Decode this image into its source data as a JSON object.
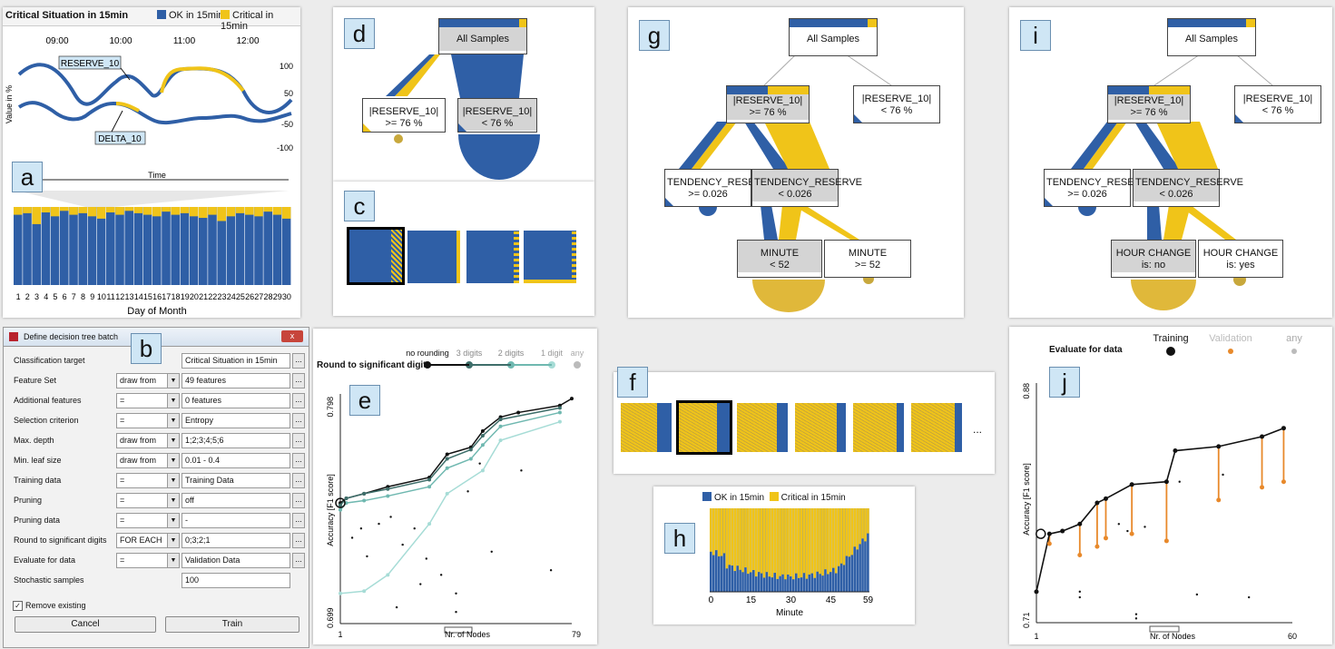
{
  "colors": {
    "ok": "#2f5fa6",
    "critical": "#f0c419",
    "training": "#111111",
    "validation": "#e8892b",
    "any": "#b0b0b0",
    "accent_label_bg": "#cfe6f5"
  },
  "panel_labels": {
    "a": "a",
    "b": "b",
    "c": "c",
    "d": "d",
    "e": "e",
    "f": "f",
    "g": "g",
    "h": "h",
    "i": "i",
    "j": "j"
  },
  "timeseries": {
    "title": "Critical Situation in 15min",
    "legend_ok": "OK in 15min",
    "legend_critical": "Critical in 15min",
    "times": [
      "09:00",
      "10:00",
      "11:00",
      "12:00"
    ],
    "ylabel": "Value in %",
    "xlabel": "Time",
    "yticks": [
      "100",
      "50",
      "-50",
      "-100"
    ],
    "series_labels": {
      "reserve": "RESERVE_10",
      "delta": "DELTA_10"
    }
  },
  "day_chart": {
    "xlabel": "Day of Month",
    "days": [
      "1",
      "2",
      "3",
      "4",
      "5",
      "6",
      "7",
      "8",
      "9",
      "10",
      "11",
      "12",
      "13",
      "14",
      "15",
      "16",
      "17",
      "18",
      "19",
      "20",
      "21",
      "22",
      "23",
      "24",
      "25",
      "26",
      "27",
      "28",
      "29",
      "30"
    ],
    "critical_fraction": [
      0.1,
      0.08,
      0.22,
      0.07,
      0.12,
      0.05,
      0.1,
      0.08,
      0.12,
      0.15,
      0.07,
      0.1,
      0.05,
      0.08,
      0.1,
      0.12,
      0.06,
      0.1,
      0.08,
      0.12,
      0.14,
      0.1,
      0.18,
      0.12,
      0.08,
      0.1,
      0.12,
      0.06,
      0.1,
      0.15
    ]
  },
  "dialog": {
    "title": "Define decision tree batch",
    "rows": [
      {
        "label": "Classification target",
        "mode": "",
        "value": "Critical Situation in 15min"
      },
      {
        "label": "Feature Set",
        "mode": "draw from",
        "value": "49 features"
      },
      {
        "label": "Additional features",
        "mode": "=",
        "value": "0 features"
      },
      {
        "label": "Selection criterion",
        "mode": "=",
        "value": "Entropy"
      },
      {
        "label": "Max. depth",
        "mode": "draw from",
        "value": "1;2;3;4;5;6"
      },
      {
        "label": "Min. leaf size",
        "mode": "draw from",
        "value": "0.01 - 0.4"
      },
      {
        "label": "Training data",
        "mode": "=",
        "value": "Training Data"
      },
      {
        "label": "Pruning",
        "mode": "=",
        "value": "off"
      },
      {
        "label": "Pruning data",
        "mode": "=",
        "value": "-"
      },
      {
        "label": "Round to significant digits",
        "mode": "FOR EACH",
        "value": "0;3;2;1"
      },
      {
        "label": "Evaluate for data",
        "mode": "=",
        "value": "Validation Data"
      },
      {
        "label": "Stochastic samples",
        "mode": "",
        "value": "100"
      }
    ],
    "checkbox_label": "Remove existing",
    "cancel": "Cancel",
    "train": "Train",
    "close": "x",
    "dots": "..."
  },
  "tree_d": {
    "root": "All Samples",
    "left_line1": "|RESERVE_10|",
    "left_line2": ">= 76 %",
    "right_line1": "|RESERVE_10|",
    "right_line2": "< 76 %"
  },
  "tree_g": {
    "root": "All Samples",
    "n1a": "|RESERVE_10|",
    "n1b": ">= 76 %",
    "n2a": "|RESERVE_10|",
    "n2b": "< 76 %",
    "n3a": "TENDENCY_RESERVE",
    "n3b": ">= 0.026",
    "n4a": "TENDENCY_RESERVE",
    "n4b": "< 0.026",
    "n5a": "MINUTE",
    "n5b": "< 52",
    "n6a": "MINUTE",
    "n6b": ">= 52"
  },
  "tree_i": {
    "root": "All Samples",
    "n1a": "|RESERVE_10|",
    "n1b": ">= 76 %",
    "n2a": "|RESERVE_10|",
    "n2b": "< 76 %",
    "n3a": "TENDENCY_RESERVE",
    "n3b": ">= 0.026",
    "n4a": "TENDENCY_RESERVE",
    "n4b": "< 0.026",
    "n5a": "HOUR CHANGE",
    "n5b": "is: no",
    "n6a": "HOUR CHANGE",
    "n6b": "is: yes"
  },
  "round_control": {
    "title": "Round to significant digits",
    "options": [
      "no rounding",
      "3 digits",
      "2 digits",
      "1 digit",
      "any"
    ]
  },
  "plot_e": {
    "ylabel": "Accuracy [F1 score]",
    "xlabel": "Nr. of Nodes",
    "ymax": "0.798",
    "ymin": "0.699",
    "xmin": "1",
    "xmax": "79"
  },
  "plot_h": {
    "legend_ok": "OK in 15min",
    "legend_critical": "Critical in 15min",
    "xlabel": "Minute",
    "xticks": [
      "0",
      "15",
      "30",
      "45",
      "59"
    ]
  },
  "eval_control": {
    "title": "Evaluate for data",
    "options": [
      "Training",
      "Validation",
      "any"
    ]
  },
  "plot_j": {
    "ylabel": "Accuracy [F1 score]",
    "xlabel": "Nr. of Nodes",
    "ymax": "0.88",
    "ymin": "0.71",
    "xmin": "1",
    "xmax": "60"
  },
  "misc": {
    "ellipsis": "..."
  },
  "chart_data": [
    {
      "type": "line",
      "title": "Critical Situation in 15min",
      "ylabel": "Value in %",
      "xlabel": "Time",
      "x": [
        "09:00",
        "10:00",
        "11:00",
        "12:00"
      ],
      "series": [
        {
          "name": "RESERVE_10",
          "values": [
            75,
            15,
            95,
            95
          ]
        },
        {
          "name": "DELTA_10",
          "values": [
            5,
            -45,
            -25,
            -20
          ]
        }
      ],
      "ylim": [
        -100,
        100
      ]
    },
    {
      "type": "bar",
      "xlabel": "Day of Month",
      "categories": [
        "1",
        "2",
        "3",
        "4",
        "5",
        "6",
        "7",
        "8",
        "9",
        "10",
        "11",
        "12",
        "13",
        "14",
        "15",
        "16",
        "17",
        "18",
        "19",
        "20",
        "21",
        "22",
        "23",
        "24",
        "25",
        "26",
        "27",
        "28",
        "29",
        "30"
      ],
      "series": [
        {
          "name": "Critical in 15min",
          "values": [
            0.1,
            0.08,
            0.22,
            0.07,
            0.12,
            0.05,
            0.1,
            0.08,
            0.12,
            0.15,
            0.07,
            0.1,
            0.05,
            0.08,
            0.1,
            0.12,
            0.06,
            0.1,
            0.08,
            0.12,
            0.14,
            0.1,
            0.18,
            0.12,
            0.08,
            0.1,
            0.12,
            0.06,
            0.1,
            0.15
          ]
        }
      ]
    },
    {
      "type": "line",
      "xlabel": "Nr. of Nodes",
      "ylabel": "Accuracy [F1 score]",
      "xlim": [
        1,
        79
      ],
      "ylim": [
        0.699,
        0.798
      ],
      "series": [
        {
          "name": "no rounding",
          "x": [
            1,
            3,
            9,
            17,
            31,
            37,
            45,
            49,
            55,
            61,
            75,
            79
          ],
          "y": [
            0.751,
            0.753,
            0.755,
            0.758,
            0.762,
            0.772,
            0.775,
            0.782,
            0.788,
            0.79,
            0.793,
            0.796
          ]
        },
        {
          "name": "3 digits",
          "x": [
            1,
            3,
            9,
            17,
            31,
            37,
            45,
            49,
            55,
            75
          ],
          "y": [
            0.75,
            0.753,
            0.755,
            0.757,
            0.761,
            0.77,
            0.774,
            0.78,
            0.787,
            0.792
          ]
        },
        {
          "name": "2 digits",
          "x": [
            1,
            3,
            9,
            17,
            31,
            37,
            45,
            49,
            55,
            75
          ],
          "y": [
            0.748,
            0.751,
            0.752,
            0.754,
            0.758,
            0.766,
            0.77,
            0.776,
            0.784,
            0.79
          ]
        },
        {
          "name": "1 digit",
          "x": [
            1,
            9,
            17,
            31,
            37,
            49,
            55,
            75
          ],
          "y": [
            0.712,
            0.713,
            0.72,
            0.742,
            0.755,
            0.765,
            0.778,
            0.786
          ]
        }
      ]
    },
    {
      "type": "line",
      "xlabel": "Nr. of Nodes",
      "ylabel": "Accuracy [F1 score]",
      "xlim": [
        1,
        60
      ],
      "ylim": [
        0.71,
        0.88
      ],
      "series": [
        {
          "name": "Training",
          "x": [
            1,
            4,
            7,
            11,
            15,
            17,
            23,
            31,
            33,
            43,
            53,
            58
          ],
          "y": [
            0.732,
            0.773,
            0.775,
            0.78,
            0.795,
            0.798,
            0.808,
            0.81,
            0.832,
            0.835,
            0.842,
            0.848
          ]
        },
        {
          "name": "Validation",
          "x": [
            4,
            11,
            15,
            17,
            23,
            31,
            43,
            53,
            58
          ],
          "y": [
            0.766,
            0.758,
            0.764,
            0.77,
            0.773,
            0.768,
            0.797,
            0.806,
            0.81
          ]
        }
      ]
    },
    {
      "type": "bar",
      "xlabel": "Minute",
      "categories": [
        "0",
        "15",
        "30",
        "45",
        "59"
      ],
      "series": [
        {
          "name": "Critical in 15min",
          "values": [
            0.6,
            0.7,
            0.75,
            0.8,
            0.45
          ]
        }
      ]
    }
  ]
}
